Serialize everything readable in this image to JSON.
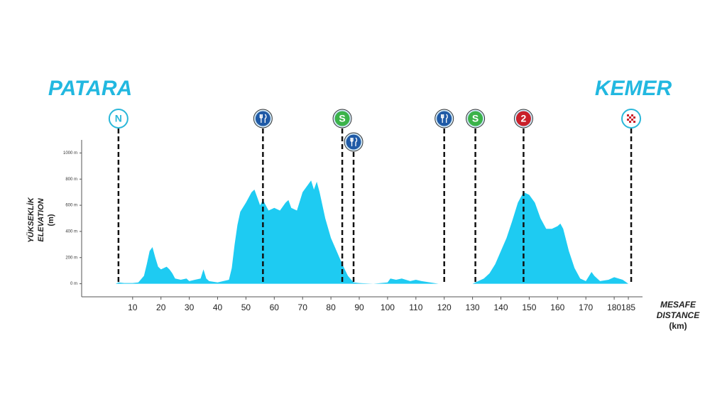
{
  "chart_data": {
    "type": "area",
    "start": "PATARA",
    "finish": "KEMER",
    "y_label": [
      "YÜKSEKLİK",
      "ELEVATION",
      "(m)"
    ],
    "x_label": [
      "MESAFE",
      "DISTANCE",
      "(km)"
    ],
    "color": "#1ecbf2",
    "x": [
      4,
      5,
      7,
      10,
      12,
      14,
      15,
      16,
      17,
      18,
      19,
      20,
      21,
      22,
      23,
      24,
      25,
      27,
      29,
      30,
      32,
      34,
      35,
      36,
      37,
      40,
      42,
      44,
      45,
      46,
      47,
      48,
      50,
      52,
      53,
      54,
      55,
      56,
      57,
      58,
      60,
      62,
      64,
      65,
      66,
      68,
      70,
      72,
      73,
      74,
      75,
      76,
      78,
      80,
      82,
      84,
      86,
      88,
      90,
      95,
      100,
      101,
      103,
      105,
      108,
      110,
      112,
      115,
      118,
      125,
      130,
      132,
      134,
      136,
      138,
      140,
      142,
      144,
      146,
      148,
      150,
      152,
      154,
      156,
      158,
      160,
      161,
      162,
      164,
      166,
      168,
      170,
      172,
      173,
      175,
      178,
      180,
      183,
      185
    ],
    "values": [
      0,
      10,
      5,
      5,
      10,
      60,
      150,
      250,
      280,
      200,
      130,
      110,
      120,
      130,
      110,
      80,
      40,
      30,
      40,
      20,
      30,
      40,
      110,
      40,
      20,
      10,
      20,
      30,
      120,
      300,
      450,
      550,
      620,
      700,
      720,
      660,
      600,
      640,
      600,
      560,
      580,
      560,
      620,
      640,
      580,
      560,
      700,
      760,
      790,
      720,
      780,
      700,
      500,
      350,
      250,
      150,
      60,
      10,
      5,
      0,
      10,
      40,
      30,
      40,
      20,
      30,
      20,
      10,
      0,
      0,
      0,
      20,
      40,
      80,
      150,
      250,
      350,
      480,
      620,
      700,
      680,
      620,
      500,
      420,
      420,
      440,
      460,
      420,
      250,
      120,
      40,
      20,
      90,
      60,
      20,
      30,
      50,
      30,
      0
    ],
    "xlim": [
      -8,
      190
    ],
    "ylim": [
      -100,
      1100
    ],
    "xticks": [
      10,
      20,
      30,
      40,
      50,
      60,
      70,
      80,
      90,
      100,
      110,
      120,
      130,
      140,
      150,
      160,
      170,
      180,
      185
    ],
    "yticks": [
      {
        "value": 0,
        "label": "0 m"
      },
      {
        "value": 200,
        "label": "200 m"
      },
      {
        "value": 400,
        "label": "400 m"
      },
      {
        "value": 600,
        "label": "600 m"
      },
      {
        "value": 800,
        "label": "800 m"
      },
      {
        "value": 1000,
        "label": "1000 m"
      }
    ],
    "markers": [
      {
        "x": 5,
        "symbol": "text",
        "label": "N",
        "color": "#ffffff"
      },
      {
        "x": 56,
        "symbol": "feed",
        "color": "#1f5aa6"
      },
      {
        "x": 84,
        "symbol": "text",
        "label": "S",
        "color": "#3bb34a"
      },
      {
        "x": 88,
        "symbol": "feed",
        "color": "#1f5aa6"
      },
      {
        "x": 120,
        "symbol": "feed",
        "color": "#1f5aa6"
      },
      {
        "x": 131,
        "symbol": "text",
        "label": "S",
        "color": "#3bb34a"
      },
      {
        "x": 148,
        "symbol": "text",
        "label": "2",
        "color": "#c9202a"
      },
      {
        "x": 186,
        "symbol": "finish",
        "color": "#ffffff"
      }
    ]
  }
}
